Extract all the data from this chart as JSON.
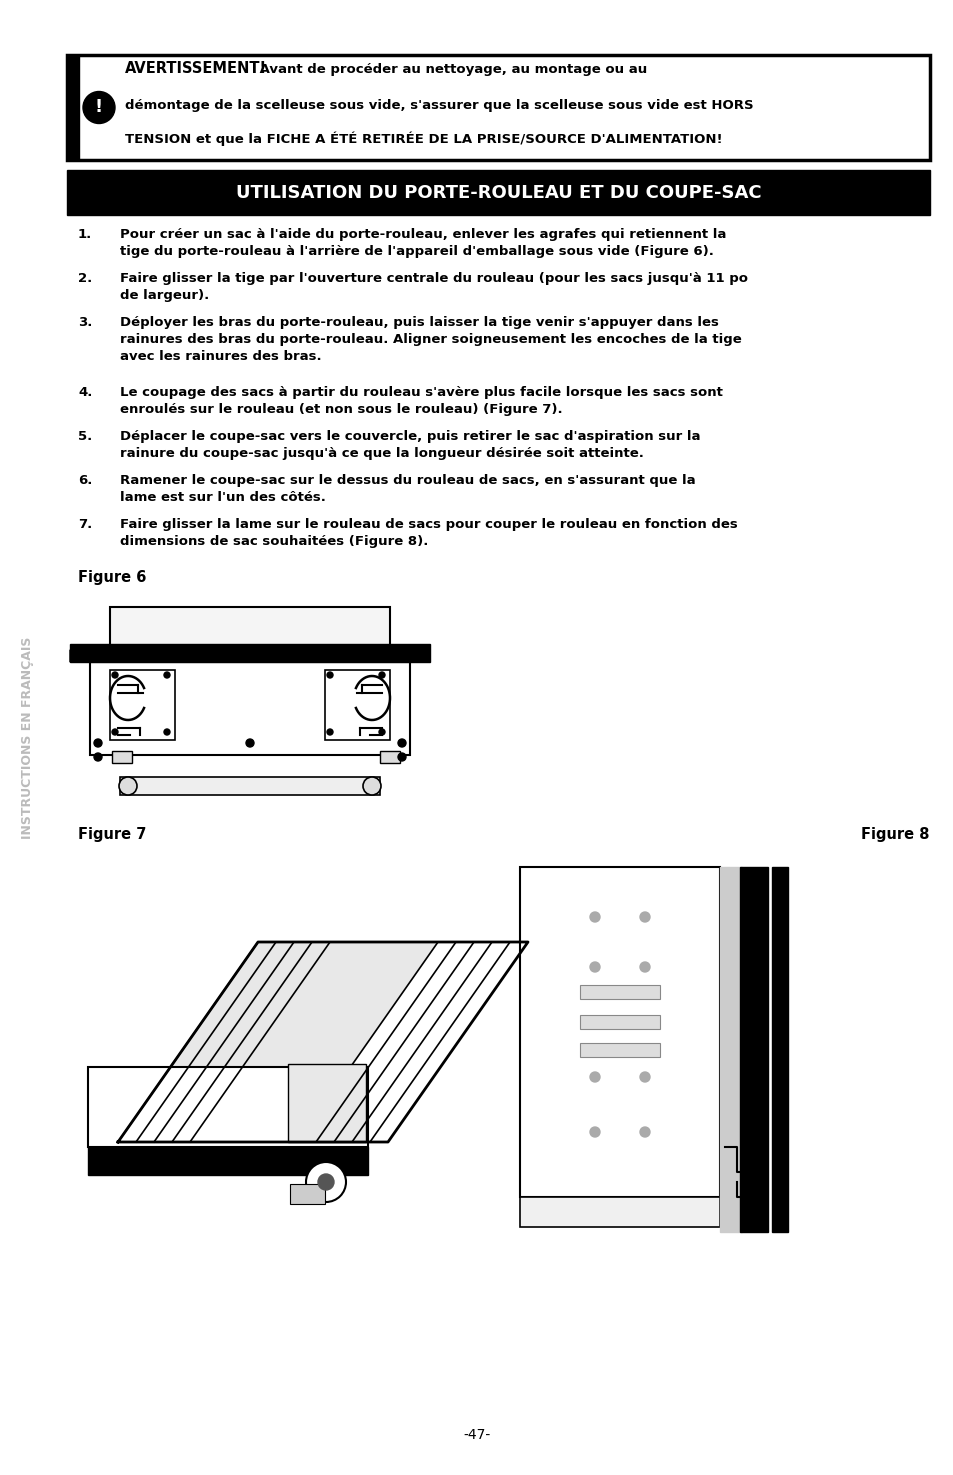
{
  "bg_color": "#ffffff",
  "page_width": 9.54,
  "page_height": 14.75,
  "sidebar_text": "INSTRUCTIONS EN FRANÇAIS",
  "warning_title": "AVERTISSEMENT!",
  "warning_body1": " Avant de procéder au nettoyage, au montage ou au",
  "warning_body2": "démontage de la scelleuse sous vide, s'assurer que la scelleuse sous vide est HORS",
  "warning_body3": "TENSION et que la FICHE A ÉTÉ RETIRÉE DE LA PRISE/SOURCE D'ALIMENTATION!",
  "section_title": "UTILISATION DU PORTE-ROULEAU ET DU COUPE-SAC",
  "step1_num": "1.",
  "step1_text": "Pour créer un sac à l'aide du porte-rouleau, enlever les agrafes qui retiennent la\ntige du porte-rouleau à l'arrière de l'appareil d'emballage sous vide (Figure 6).",
  "step2_num": "2.",
  "step2_text": "Faire glisser la tige par l'ouverture centrale du rouleau (pour les sacs jusqu'à 11 po\nde largeur).",
  "step3_num": "3.",
  "step3_text": "Déployer les bras du porte-rouleau, puis laisser la tige venir s'appuyer dans les\nrainures des bras du porte-rouleau. Aligner soigneusement les encoches de la tige\navec les rainures des bras.",
  "step4_num": "4.",
  "step4_text": "Le coupage des sacs à partir du rouleau s'avère plus facile lorsque les sacs sont\nenroulés sur le rouleau (et non sous le rouleau) (Figure 7).",
  "step5_num": "5.",
  "step5_text": "Déplacer le coupe-sac vers le couvercle, puis retirer le sac d'aspiration sur la\nrainure du coupe-sac jusqu'à ce que la longueur désirée soit atteinte.",
  "step6_num": "6.",
  "step6_text": "Ramener le coupe-sac sur le dessus du rouleau de sacs, en s'assurant que la\nlame est sur l'un des côtés.",
  "step7_num": "7.",
  "step7_text": "Faire glisser la lame sur le rouleau de sacs pour couper le rouleau en fonction des\ndimensions de sac souhaitées (Figure 8).",
  "fig6_label": "Figure 6",
  "fig7_label": "Figure 7",
  "fig8_label": "Figure 8",
  "page_num": "-47-",
  "sidebar_color": "#bbbbbb",
  "text_color": "#000000",
  "warn_border_color": "#000000",
  "title_bar_color": "#000000",
  "title_text_color": "#ffffff"
}
